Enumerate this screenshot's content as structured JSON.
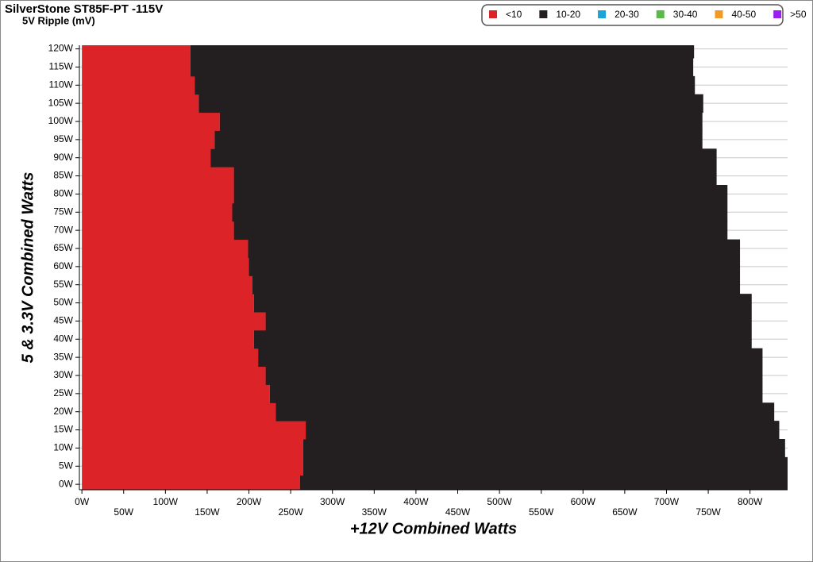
{
  "chart_data": {
    "type": "ripple-map",
    "title": "SilverStone ST85F-PT -115V",
    "subtitle": "5V Ripple (mV)",
    "x_label": "+12V Combined Watts",
    "y_label": "5 & 3.3V Combined Watts",
    "y": [
      0,
      5,
      10,
      15,
      20,
      25,
      30,
      35,
      40,
      45,
      50,
      55,
      60,
      65,
      70,
      75,
      80,
      85,
      90,
      95,
      100,
      105,
      110,
      115,
      120
    ],
    "row_height": 5,
    "series": [
      {
        "name": "<10",
        "color": "#dc2428",
        "values": [
          261,
          265,
          265,
          268,
          232,
          225,
          220,
          211,
          206,
          220,
          206,
          204,
          200,
          199,
          182,
          180,
          182,
          182,
          154,
          159,
          165,
          140,
          135,
          130,
          130
        ]
      },
      {
        "name": "10-20",
        "color": "#231f20",
        "values": [
          584,
          580,
          577,
          567,
          597,
          590,
          595,
          604,
          596,
          582,
          596,
          584,
          588,
          589,
          591,
          593,
          591,
          578,
          606,
          584,
          578,
          604,
          599,
          602,
          603
        ]
      },
      {
        "name": "20-30",
        "color": "#1ca3d8",
        "values": [
          0,
          0,
          0,
          0,
          0,
          0,
          0,
          0,
          0,
          0,
          0,
          0,
          0,
          0,
          0,
          0,
          0,
          0,
          0,
          0,
          0,
          0,
          0,
          0,
          0
        ]
      },
      {
        "name": "30-40",
        "color": "#5bb947",
        "values": [
          0,
          0,
          0,
          0,
          0,
          0,
          0,
          0,
          0,
          0,
          0,
          0,
          0,
          0,
          0,
          0,
          0,
          0,
          0,
          0,
          0,
          0,
          0,
          0,
          0
        ]
      },
      {
        "name": "40-50",
        "color": "#f39a24",
        "values": [
          0,
          0,
          0,
          0,
          0,
          0,
          0,
          0,
          0,
          0,
          0,
          0,
          0,
          0,
          0,
          0,
          0,
          0,
          0,
          0,
          0,
          0,
          0,
          0,
          0
        ]
      },
      {
        "name": ">50",
        "color": "#9b1ff0",
        "values": [
          0,
          0,
          0,
          0,
          0,
          0,
          0,
          0,
          0,
          0,
          0,
          0,
          0,
          0,
          0,
          0,
          0,
          0,
          0,
          0,
          0,
          0,
          0,
          0,
          0
        ]
      }
    ],
    "xlim": [
      -3,
      845
    ],
    "ylim": [
      -1.5,
      121
    ],
    "xticks": [
      {
        "value": 0,
        "label": "0W"
      },
      {
        "value": 50,
        "label": "50W"
      },
      {
        "value": 100,
        "label": "100W"
      },
      {
        "value": 150,
        "label": "150W"
      },
      {
        "value": 200,
        "label": "200W"
      },
      {
        "value": 250,
        "label": "250W"
      },
      {
        "value": 300,
        "label": "300W"
      },
      {
        "value": 350,
        "label": "350W"
      },
      {
        "value": 400,
        "label": "400W"
      },
      {
        "value": 450,
        "label": "450W"
      },
      {
        "value": 500,
        "label": "500W"
      },
      {
        "value": 550,
        "label": "550W"
      },
      {
        "value": 600,
        "label": "600W"
      },
      {
        "value": 650,
        "label": "650W"
      },
      {
        "value": 700,
        "label": "700W"
      },
      {
        "value": 750,
        "label": "750W"
      },
      {
        "value": 800,
        "label": "800W"
      }
    ],
    "yticks": [
      {
        "value": 0,
        "label": "0W"
      },
      {
        "value": 5,
        "label": "5W"
      },
      {
        "value": 10,
        "label": "10W"
      },
      {
        "value": 15,
        "label": "15W"
      },
      {
        "value": 20,
        "label": "20W"
      },
      {
        "value": 25,
        "label": "25W"
      },
      {
        "value": 30,
        "label": "30W"
      },
      {
        "value": 35,
        "label": "35W"
      },
      {
        "value": 40,
        "label": "40W"
      },
      {
        "value": 45,
        "label": "45W"
      },
      {
        "value": 50,
        "label": "50W"
      },
      {
        "value": 55,
        "label": "55W"
      },
      {
        "value": 60,
        "label": "60W"
      },
      {
        "value": 65,
        "label": "65W"
      },
      {
        "value": 70,
        "label": "70W"
      },
      {
        "value": 75,
        "label": "75W"
      },
      {
        "value": 80,
        "label": "80W"
      },
      {
        "value": 85,
        "label": "85W"
      },
      {
        "value": 90,
        "label": "90W"
      },
      {
        "value": 95,
        "label": "95W"
      },
      {
        "value": 100,
        "label": "100W"
      },
      {
        "value": 105,
        "label": "105W"
      },
      {
        "value": 110,
        "label": "110W"
      },
      {
        "value": 115,
        "label": "115W"
      },
      {
        "value": 120,
        "label": "120W"
      }
    ],
    "grid": true
  }
}
